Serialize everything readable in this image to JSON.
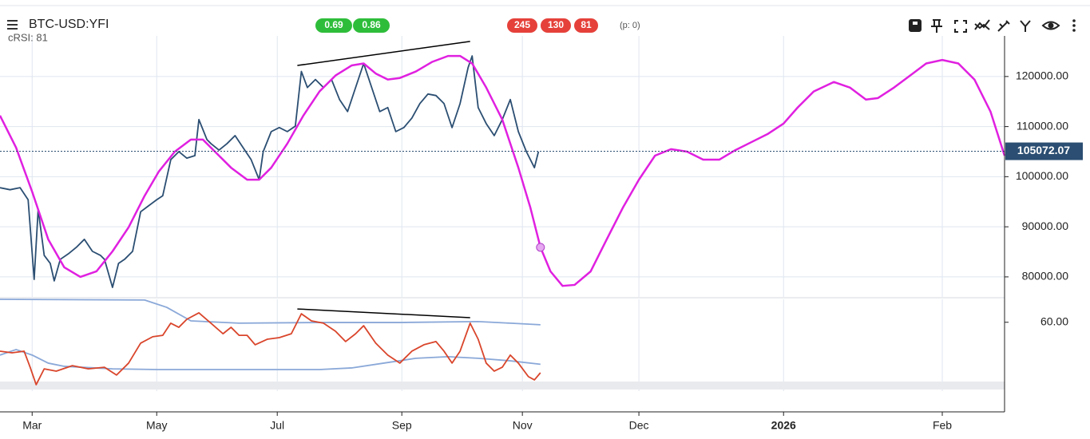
{
  "header": {
    "title": "BTC-USD:YFI",
    "indicator": "cRSI: 81",
    "green_badges": [
      "0.69",
      "0.86"
    ],
    "red_badges": [
      "245",
      "130",
      "81"
    ],
    "note": "(p: 0)"
  },
  "chart_data": [
    {
      "type": "line",
      "xlim": [
        0,
        500
      ],
      "ylim": [
        76000,
        128100
      ],
      "xticks": [
        {
          "value": 16,
          "label": "Mar"
        },
        {
          "value": 78,
          "label": "May"
        },
        {
          "value": 138,
          "label": "Jul"
        },
        {
          "value": 200,
          "label": "Sep"
        },
        {
          "value": 260,
          "label": "Nov"
        },
        {
          "value": 318,
          "label": "Dec"
        },
        {
          "value": 390,
          "label": "2026"
        },
        {
          "value": 469,
          "label": "Feb"
        }
      ],
      "yticks": [
        {
          "value": 80000,
          "label": "80000.00"
        },
        {
          "value": 90000,
          "label": "90000.00"
        },
        {
          "value": 100000,
          "label": "100000.00"
        },
        {
          "value": 110000,
          "label": "110000.00"
        },
        {
          "value": 120000,
          "label": "120000.00"
        }
      ],
      "grid": true,
      "last_price": 105072.07,
      "series": [
        {
          "color": "#2b4e72",
          "x": [
            0,
            5,
            10,
            14,
            17,
            19,
            22,
            25,
            27,
            30,
            34,
            38,
            42,
            46,
            50,
            52,
            56,
            59,
            62,
            66,
            70,
            74,
            78,
            81,
            85,
            89,
            93,
            97,
            99,
            103,
            105,
            109,
            113,
            117,
            121,
            125,
            129,
            131,
            135,
            139,
            143,
            147,
            150,
            153,
            157,
            161,
            165,
            169,
            173,
            177,
            181,
            185,
            189,
            193,
            197,
            201,
            205,
            209,
            213,
            217,
            221,
            225,
            229,
            233,
            235,
            238,
            242,
            246,
            250,
            254,
            258,
            262,
            266,
            268
          ],
          "values": [
            97800,
            97400,
            97800,
            95400,
            79500,
            93500,
            84300,
            82700,
            79200,
            83500,
            84600,
            85900,
            87500,
            85100,
            84300,
            83500,
            77900,
            82700,
            83500,
            85100,
            93000,
            94200,
            95400,
            96200,
            103400,
            105000,
            103700,
            104200,
            111400,
            107400,
            106600,
            105300,
            106600,
            108200,
            105800,
            103400,
            99400,
            105000,
            109000,
            109800,
            109000,
            110100,
            121000,
            117800,
            119400,
            117800,
            119400,
            115400,
            113000,
            117800,
            122600,
            117800,
            113000,
            113800,
            109000,
            109800,
            111700,
            114600,
            116500,
            116200,
            114600,
            109800,
            114600,
            121800,
            124100,
            113800,
            110600,
            108200,
            111400,
            115400,
            109000,
            105000,
            101800,
            105000
          ]
        },
        {
          "color": "#e020e0",
          "x": [
            0,
            8,
            16,
            24,
            32,
            40,
            48,
            56,
            64,
            72,
            79,
            87,
            95,
            101,
            107,
            115,
            123,
            129,
            135,
            143,
            151,
            159,
            167,
            175,
            181,
            187,
            193,
            199,
            207,
            215,
            223,
            229,
            235,
            242,
            250,
            258,
            264,
            269,
            274,
            280,
            286,
            294,
            302,
            310,
            318,
            326,
            334,
            342,
            350,
            358,
            366,
            374,
            382,
            390,
            397,
            405,
            415,
            423,
            431,
            437,
            445,
            453,
            461,
            469,
            477,
            485,
            493,
            500
          ],
          "values": [
            112200,
            105800,
            97000,
            87500,
            81900,
            80000,
            81100,
            85100,
            89900,
            96200,
            101000,
            105000,
            107400,
            107400,
            105000,
            101800,
            99400,
            99400,
            101800,
            106600,
            112200,
            117000,
            120200,
            122200,
            122600,
            120600,
            119400,
            119700,
            121000,
            122900,
            124100,
            124100,
            122600,
            117800,
            111400,
            101800,
            93800,
            85900,
            81100,
            78200,
            78400,
            81100,
            87500,
            93800,
            99400,
            104200,
            105500,
            105000,
            103400,
            103400,
            105300,
            106900,
            108500,
            110600,
            113800,
            117000,
            118900,
            117800,
            115400,
            115700,
            117800,
            120200,
            122600,
            123300,
            122600,
            119400,
            113000,
            104200
          ]
        }
      ],
      "trendline": {
        "color": "#000000",
        "x": [
          148,
          234
        ],
        "values": [
          122200,
          127000
        ]
      }
    },
    {
      "type": "line",
      "xlim": [
        0,
        500
      ],
      "ylim": [
        30,
        70
      ],
      "yticks": [
        {
          "value": 60,
          "label": "60.00"
        }
      ],
      "series": [
        {
          "color": "#8aa8d8",
          "x": [
            0,
            72,
            83,
            95,
            119,
            159,
            199,
            238,
            254,
            269
          ],
          "values": [
            70,
            69.7,
            66.5,
            60.6,
            59.6,
            59.9,
            59.9,
            60.3,
            59.6,
            58.9
          ]
        },
        {
          "color": "#8aa8d8",
          "x": [
            0,
            8,
            16,
            24,
            32,
            56,
            79,
            119,
            159,
            175,
            191,
            207,
            223,
            238,
            254,
            269
          ],
          "values": [
            45.7,
            48.1,
            45.7,
            42.2,
            40.8,
            39.7,
            39.4,
            39.4,
            39.4,
            40.1,
            42.2,
            44.3,
            45.0,
            44.3,
            43.2,
            41.7
          ]
        },
        {
          "color": "#d9452b",
          "x": [
            0,
            6,
            12,
            15,
            18,
            22,
            28,
            36,
            44,
            52,
            58,
            64,
            70,
            76,
            81,
            85,
            89,
            93,
            99,
            105,
            111,
            115,
            119,
            123,
            127,
            133,
            139,
            145,
            150,
            155,
            161,
            167,
            172,
            177,
            181,
            187,
            193,
            199,
            205,
            211,
            217,
            221,
            225,
            229,
            234,
            238,
            242,
            246,
            250,
            254,
            258,
            263,
            266,
            269
          ],
          "values": [
            47.4,
            46.7,
            47.4,
            40.4,
            32.8,
            39.7,
            38.7,
            41.1,
            39.7,
            40.4,
            37.0,
            42.2,
            50.9,
            53.7,
            54.3,
            59.6,
            57.8,
            61.3,
            64.1,
            59.6,
            55.0,
            57.8,
            54.3,
            54.3,
            50.2,
            52.6,
            53.3,
            55.0,
            63.7,
            60.6,
            59.6,
            56.1,
            51.6,
            55.0,
            58.5,
            50.9,
            45.7,
            42.2,
            47.4,
            50.2,
            51.6,
            47.4,
            42.2,
            47.4,
            59.6,
            52.6,
            42.2,
            38.7,
            40.4,
            45.7,
            42.2,
            36.3,
            34.9,
            38.0
          ]
        }
      ],
      "trendline": {
        "color": "#000000",
        "x": [
          148,
          234
        ],
        "values": [
          65.8,
          62.0
        ]
      }
    }
  ]
}
